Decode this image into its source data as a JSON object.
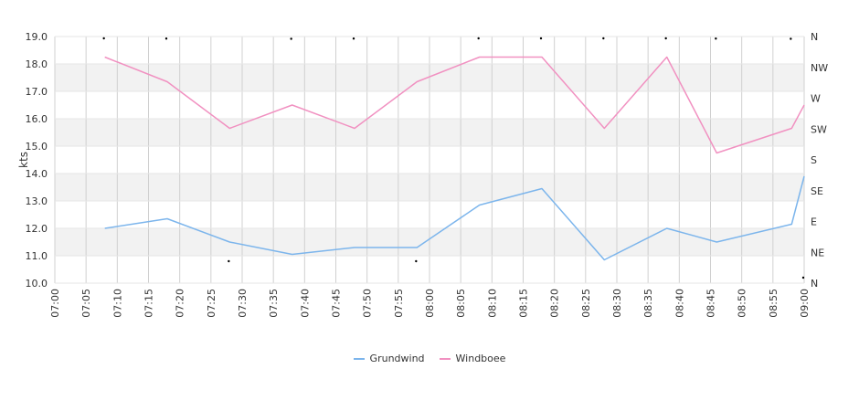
{
  "chart_data": {
    "type": "line",
    "title": "",
    "xlabel": "",
    "ylabel": "kts",
    "ylim": [
      10,
      19
    ],
    "yticks": [
      "10.0",
      "11.0",
      "12.0",
      "13.0",
      "14.0",
      "15.0",
      "16.0",
      "17.0",
      "18.0",
      "19.0"
    ],
    "xticks": [
      "07:00",
      "07:05",
      "07:10",
      "07:15",
      "07:20",
      "07:25",
      "07:30",
      "07:35",
      "07:40",
      "07:45",
      "07:50",
      "07:55",
      "08:00",
      "08:05",
      "08:10",
      "08:15",
      "08:20",
      "08:25",
      "08:30",
      "08:35",
      "08:40",
      "08:45",
      "08:50",
      "08:55",
      "09:00"
    ],
    "y2ticks": [
      "N",
      "NE",
      "E",
      "SE",
      "S",
      "SW",
      "W",
      "NW",
      "N"
    ],
    "grid": true,
    "legend_position": "bottom",
    "series": [
      {
        "name": "Grundwind",
        "color": "#7cb5ec",
        "x": [
          "07:08",
          "07:18",
          "07:28",
          "07:38",
          "07:48",
          "07:58",
          "08:08",
          "08:18",
          "08:28",
          "08:38",
          "08:46",
          "08:58",
          "09:00"
        ],
        "values": [
          12.0,
          12.35,
          11.5,
          11.05,
          11.3,
          11.3,
          12.85,
          13.45,
          10.85,
          12.0,
          11.5,
          12.15,
          13.9
        ]
      },
      {
        "name": "Windboee",
        "color": "#f191c1",
        "x": [
          "07:08",
          "07:18",
          "07:28",
          "07:38",
          "07:48",
          "07:58",
          "08:08",
          "08:18",
          "08:28",
          "08:38",
          "08:46",
          "08:58",
          "09:00"
        ],
        "values": [
          18.25,
          17.35,
          15.65,
          16.5,
          15.65,
          17.35,
          18.25,
          18.25,
          15.65,
          18.25,
          14.75,
          15.65,
          16.5
        ]
      },
      {
        "name": "",
        "type": "scatter",
        "color": "#000000",
        "x": [
          "07:08",
          "07:18",
          "07:28",
          "07:38",
          "07:48",
          "07:58",
          "08:08",
          "08:18",
          "08:28",
          "08:38",
          "08:46",
          "08:58",
          "09:00"
        ],
        "values": [
          360,
          355,
          0,
          350,
          355,
          0,
          360,
          360,
          360,
          360,
          355,
          350,
          15
        ]
      }
    ]
  },
  "legend": {
    "items": [
      {
        "label": "Grundwind",
        "color": "#7cb5ec"
      },
      {
        "label": "Windboee",
        "color": "#f191c1"
      }
    ]
  }
}
